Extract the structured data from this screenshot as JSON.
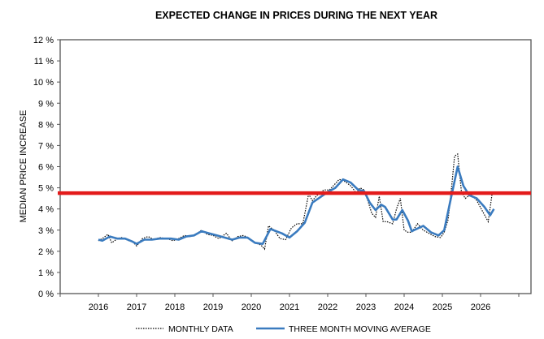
{
  "chart_data": {
    "type": "line",
    "title": "EXPECTED CHANGE IN PRICES DURING THE NEXT YEAR",
    "xlabel": "",
    "ylabel": "MEDIAN PRICE INCREASE",
    "xlim": [
      2015,
      2027.3
    ],
    "ylim": [
      0,
      12
    ],
    "x_ticks": [
      "2016",
      "2017",
      "2018",
      "2019",
      "2020",
      "2021",
      "2022",
      "2023",
      "2024",
      "2025",
      "2026"
    ],
    "y_ticks": [
      "0 %",
      "1 %",
      "2 %",
      "3 %",
      "4 %",
      "5 %",
      "6 %",
      "7 %",
      "8 %",
      "9 %",
      "10 %",
      "11 %",
      "12 %"
    ],
    "grid": false,
    "legend_position": "bottom",
    "reference_line": {
      "value": 4.75,
      "color": "#e31b1b"
    },
    "series": [
      {
        "name": "MONTHLY DATA",
        "style": "dotted",
        "color": "#000000",
        "x": [
          2016.0,
          2016.1,
          2016.25,
          2016.35,
          2016.5,
          2016.6,
          2016.8,
          2016.9,
          2017.0,
          2017.15,
          2017.3,
          2017.45,
          2017.6,
          2017.8,
          2017.95,
          2018.1,
          2018.25,
          2018.4,
          2018.55,
          2018.7,
          2018.85,
          2019.0,
          2019.15,
          2019.35,
          2019.5,
          2019.65,
          2019.8,
          2019.95,
          2020.1,
          2020.25,
          2020.35,
          2020.45,
          2020.6,
          2020.75,
          2020.9,
          2021.05,
          2021.2,
          2021.35,
          2021.5,
          2021.6,
          2021.75,
          2021.9,
          2022.05,
          2022.2,
          2022.3,
          2022.45,
          2022.6,
          2022.75,
          2022.85,
          2022.95,
          2023.05,
          2023.15,
          2023.25,
          2023.35,
          2023.45,
          2023.55,
          2023.7,
          2023.8,
          2023.9,
          2024.0,
          2024.1,
          2024.2,
          2024.35,
          2024.5,
          2024.65,
          2024.8,
          2024.95,
          2025.05,
          2025.15,
          2025.25,
          2025.32,
          2025.4,
          2025.5,
          2025.6,
          2025.75,
          2025.9,
          2026.05,
          2026.2,
          2026.3
        ],
        "values": [
          2.5,
          2.6,
          2.8,
          2.4,
          2.6,
          2.65,
          2.5,
          2.45,
          2.25,
          2.6,
          2.7,
          2.55,
          2.65,
          2.6,
          2.5,
          2.6,
          2.75,
          2.7,
          2.8,
          3.0,
          2.8,
          2.75,
          2.6,
          2.85,
          2.5,
          2.7,
          2.75,
          2.6,
          2.4,
          2.3,
          2.1,
          3.2,
          3.0,
          2.6,
          2.55,
          3.1,
          3.3,
          3.3,
          4.7,
          4.4,
          4.7,
          4.9,
          4.9,
          5.2,
          5.4,
          5.3,
          5.1,
          4.75,
          5.0,
          4.9,
          4.4,
          3.8,
          3.6,
          4.6,
          3.4,
          3.4,
          3.3,
          4.0,
          4.5,
          3.0,
          2.9,
          2.9,
          3.3,
          3.0,
          2.85,
          2.7,
          2.65,
          2.9,
          3.5,
          5.2,
          6.5,
          6.6,
          4.8,
          4.5,
          4.7,
          4.4,
          3.9,
          3.4,
          4.7
        ]
      },
      {
        "name": "THREE MONTH MOVING AVERAGE",
        "style": "solid",
        "color": "#3a7bbf",
        "x": [
          2016.0,
          2016.1,
          2016.3,
          2016.5,
          2016.7,
          2016.9,
          2017.0,
          2017.2,
          2017.4,
          2017.6,
          2017.9,
          2018.1,
          2018.3,
          2018.5,
          2018.7,
          2018.9,
          2019.1,
          2019.3,
          2019.5,
          2019.7,
          2019.9,
          2020.1,
          2020.3,
          2020.5,
          2020.8,
          2021.0,
          2021.2,
          2021.4,
          2021.6,
          2021.8,
          2022.0,
          2022.2,
          2022.4,
          2022.6,
          2022.8,
          2022.95,
          2023.1,
          2023.25,
          2023.4,
          2023.5,
          2023.7,
          2023.8,
          2023.95,
          2024.1,
          2024.2,
          2024.5,
          2024.7,
          2024.9,
          2025.05,
          2025.2,
          2025.4,
          2025.55,
          2025.7,
          2025.9,
          2026.1,
          2026.25,
          2026.35
        ],
        "values": [
          2.55,
          2.5,
          2.7,
          2.6,
          2.6,
          2.45,
          2.35,
          2.55,
          2.55,
          2.6,
          2.6,
          2.55,
          2.7,
          2.75,
          2.95,
          2.85,
          2.75,
          2.65,
          2.55,
          2.65,
          2.65,
          2.4,
          2.35,
          3.05,
          2.85,
          2.65,
          2.95,
          3.35,
          4.3,
          4.55,
          4.8,
          5.0,
          5.4,
          5.25,
          4.9,
          4.85,
          4.3,
          3.95,
          4.2,
          4.1,
          3.5,
          3.5,
          3.95,
          3.45,
          2.95,
          3.2,
          2.9,
          2.75,
          3.0,
          4.3,
          6.0,
          5.1,
          4.65,
          4.5,
          4.1,
          3.7,
          4.0
        ]
      }
    ]
  }
}
